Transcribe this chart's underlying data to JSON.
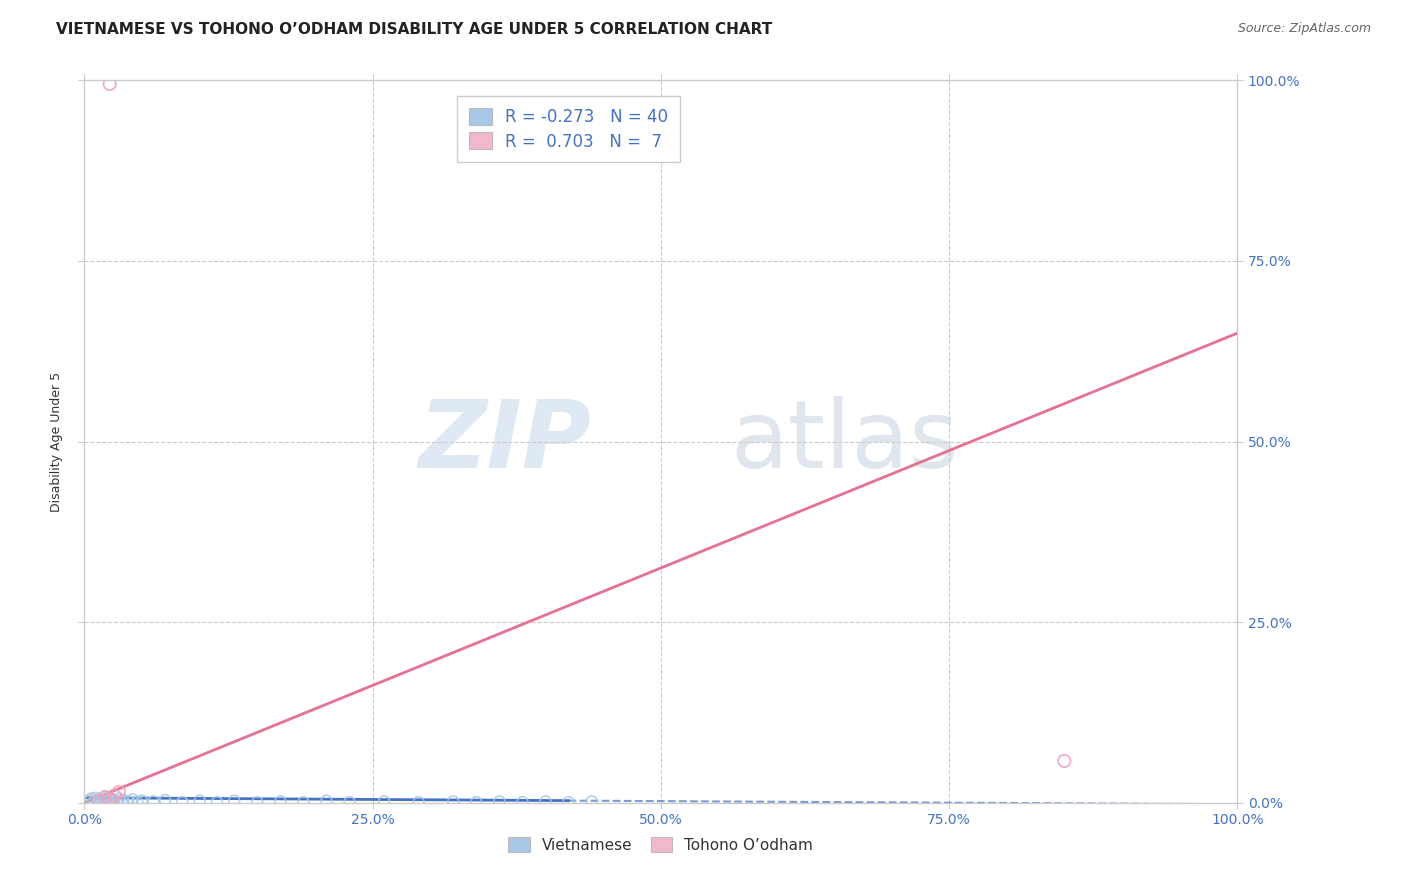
{
  "title": "VIETNAMESE VS TOHONO O’ODHAM DISABILITY AGE UNDER 5 CORRELATION CHART",
  "source": "Source: ZipAtlas.com",
  "ylabel": "Disability Age Under 5",
  "xmin": 0.0,
  "xmax": 1.0,
  "ymin": 0.0,
  "ymax": 1.0,
  "xtick_labels": [
    "0.0%",
    "25.0%",
    "50.0%",
    "75.0%",
    "100.0%"
  ],
  "xtick_vals": [
    0.0,
    0.25,
    0.5,
    0.75,
    1.0
  ],
  "ytick_labels": [
    "0.0%",
    "25.0%",
    "50.0%",
    "75.0%",
    "100.0%"
  ],
  "ytick_vals": [
    0.0,
    0.25,
    0.5,
    0.75,
    1.0
  ],
  "blue_scatter_x": [
    0.004,
    0.006,
    0.008,
    0.01,
    0.012,
    0.014,
    0.016,
    0.018,
    0.02,
    0.022,
    0.024,
    0.026,
    0.028,
    0.03,
    0.032,
    0.034,
    0.038,
    0.042,
    0.046,
    0.05,
    0.06,
    0.07,
    0.085,
    0.1,
    0.115,
    0.13,
    0.15,
    0.17,
    0.19,
    0.21,
    0.23,
    0.26,
    0.29,
    0.32,
    0.34,
    0.36,
    0.38,
    0.4,
    0.42,
    0.44
  ],
  "blue_scatter_y": [
    0.003,
    0.006,
    0.002,
    0.007,
    0.001,
    0.005,
    0.003,
    0.008,
    0.002,
    0.006,
    0.001,
    0.004,
    0.002,
    0.006,
    0.001,
    0.004,
    0.002,
    0.005,
    0.001,
    0.003,
    0.002,
    0.004,
    0.001,
    0.003,
    0.001,
    0.003,
    0.001,
    0.002,
    0.001,
    0.003,
    0.001,
    0.002,
    0.001,
    0.002,
    0.001,
    0.002,
    0.001,
    0.002,
    0.001,
    0.002
  ],
  "pink_scatter_x": [
    0.012,
    0.018,
    0.022,
    0.026,
    0.03,
    0.85,
    0.022
  ],
  "pink_scatter_y": [
    0.003,
    0.008,
    0.005,
    0.01,
    0.015,
    0.058,
    0.995
  ],
  "blue_line_start_x": 0.0,
  "blue_line_start_y": 0.007,
  "blue_line_solid_end_x": 0.42,
  "blue_line_solid_end_y": 0.003,
  "blue_line_dash_end_x": 1.0,
  "blue_line_dash_end_y": -0.002,
  "pink_line_start_x": 0.0,
  "pink_line_start_y": 0.0,
  "pink_line_end_x": 1.0,
  "pink_line_end_y": 0.65,
  "blue_color": "#a8c8e8",
  "blue_scatter_color": "#a8c8e8",
  "blue_line_color": "#4472c4",
  "pink_color": "#f4b8cc",
  "pink_scatter_color": "#f0a0b8",
  "pink_line_color": "#e87090",
  "legend_r_blue": "-0.273",
  "legend_n_blue": "40",
  "legend_r_pink": "0.703",
  "legend_n_pink": "7",
  "legend_label_blue": "Vietnamese",
  "legend_label_pink": "Tohono O’odham",
  "watermark_zip": "ZIP",
  "watermark_atlas": "atlas",
  "background_color": "#ffffff",
  "grid_color": "#cccccc",
  "title_fontsize": 11,
  "axis_label_fontsize": 9,
  "tick_fontsize": 10,
  "source_fontsize": 9,
  "tick_color": "#4472c4",
  "spine_color": "#cccccc"
}
